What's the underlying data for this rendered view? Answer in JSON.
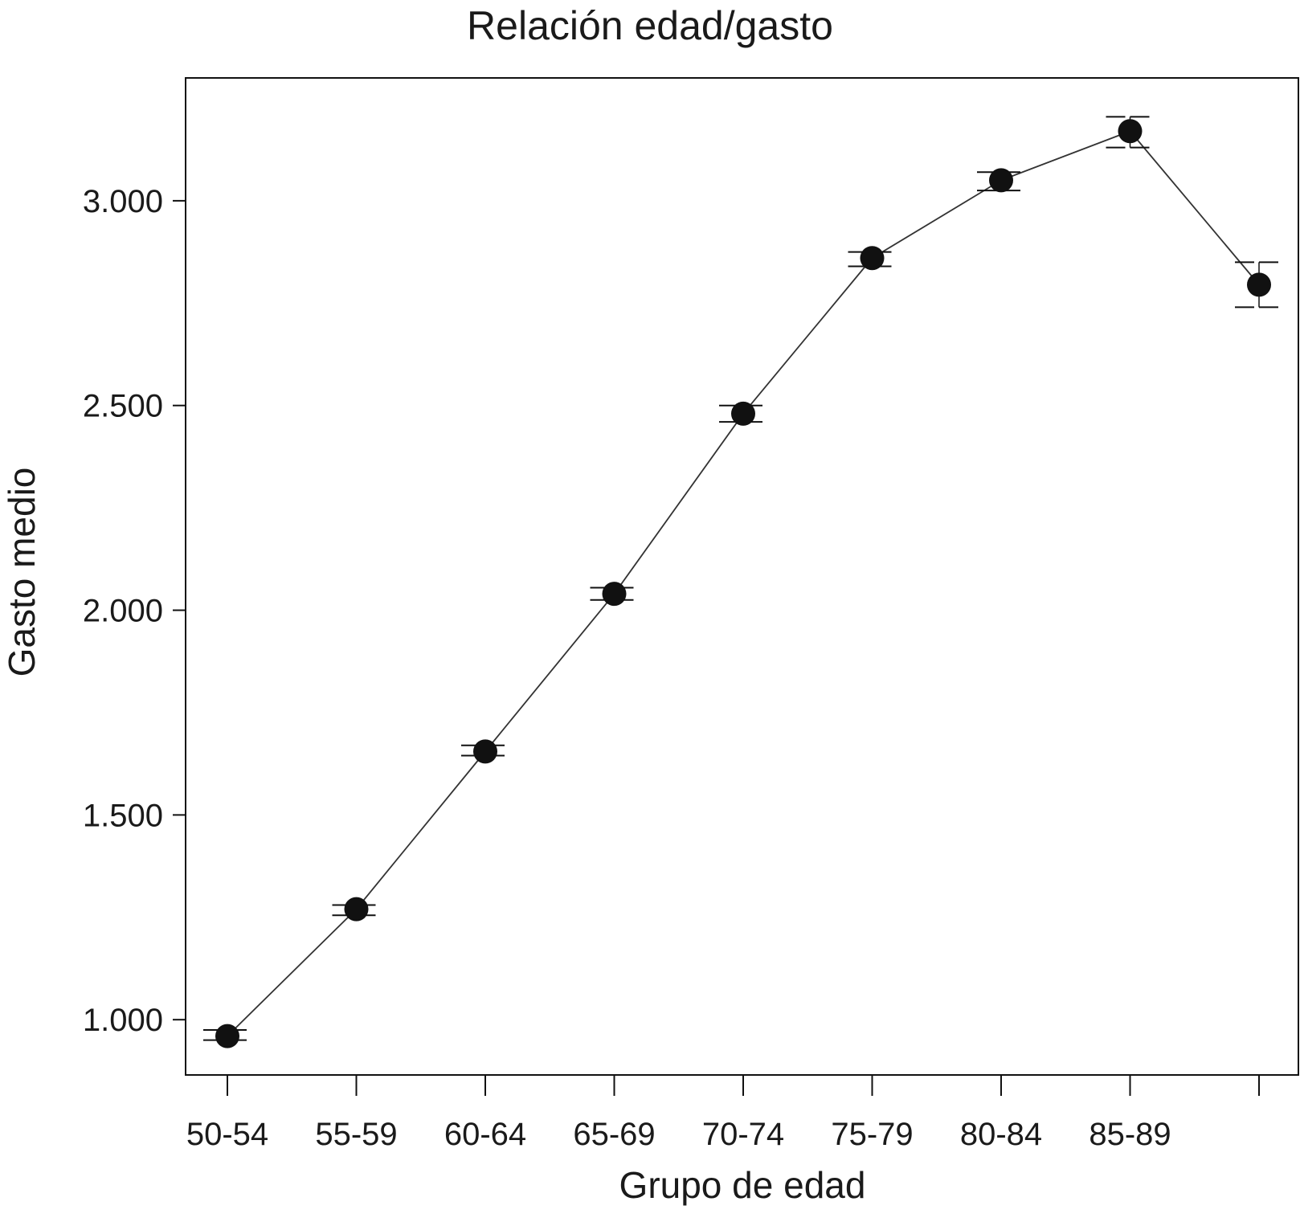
{
  "chart_data": {
    "type": "line",
    "title": "Relación edad/gasto",
    "xlabel": "Grupo de edad",
    "ylabel": "Gasto medio",
    "categories": [
      "50-54",
      "55-59",
      "60-64",
      "65-69",
      "70-74",
      "75-79",
      "80-84",
      "85-89",
      ""
    ],
    "values": [
      960,
      1270,
      1655,
      2040,
      2480,
      2860,
      3050,
      3170,
      2795
    ],
    "error_low": [
      950,
      1255,
      1645,
      2025,
      2460,
      2840,
      3025,
      3130,
      2740
    ],
    "error_high": [
      975,
      1280,
      1670,
      2055,
      2500,
      2875,
      3070,
      3205,
      2850
    ],
    "yticks": [
      1000,
      1500,
      2000,
      2500,
      3000
    ],
    "ytick_labels": [
      "1.000",
      "1.500",
      "2.000",
      "2.500",
      "3.000"
    ],
    "ylim": [
      865,
      3300
    ],
    "grid": false,
    "legend": "none",
    "colors": {
      "marker": "#111111",
      "line": "#333333",
      "axis": "#111111"
    }
  }
}
